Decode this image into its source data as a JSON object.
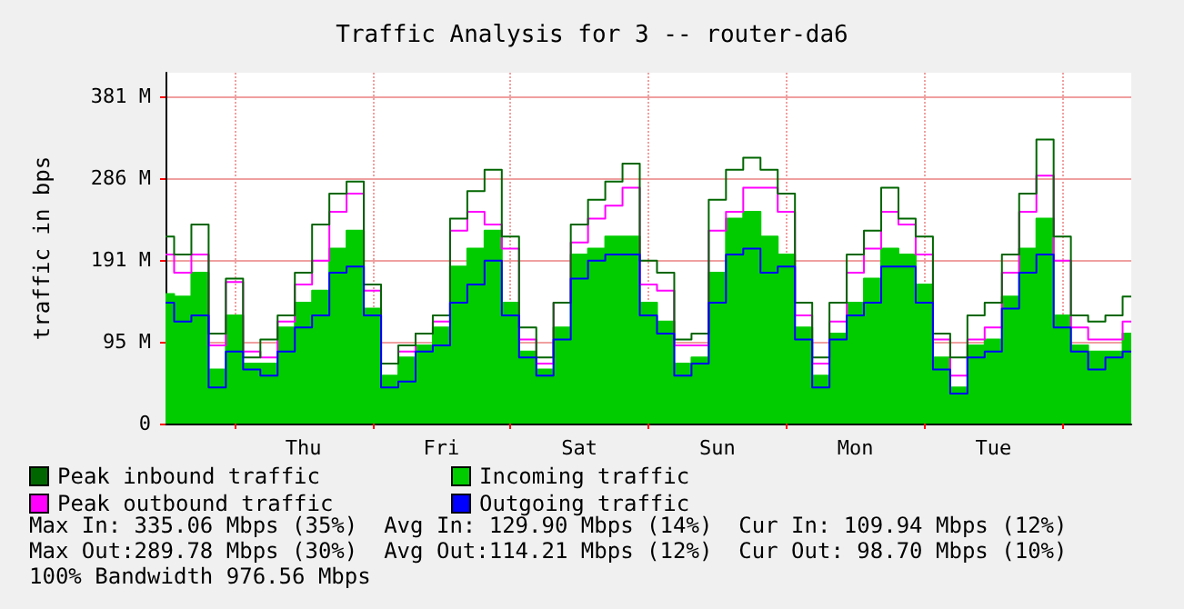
{
  "chart_data": {
    "type": "step",
    "title": "Traffic Analysis for 3 -- router-da6",
    "ylabel": "traffic in bps",
    "categories": [
      null,
      null,
      null,
      null,
      null,
      null,
      null,
      null,
      "Thu",
      null,
      null,
      null,
      null,
      null,
      null,
      null,
      "Fri",
      null,
      null,
      null,
      null,
      null,
      null,
      null,
      "Sat",
      null,
      null,
      null,
      null,
      null,
      null,
      null,
      "Sun",
      null,
      null,
      null,
      null,
      null,
      null,
      null,
      "Mon",
      null,
      null,
      null,
      null,
      null,
      null,
      null,
      "Tue",
      null,
      null,
      null,
      null,
      null,
      null,
      null,
      null
    ],
    "series": [
      {
        "name": "Incoming traffic",
        "type": "area",
        "color": "#00cc00",
        "values": [
          151,
          148,
          176,
          63,
          126,
          70,
          70,
          112,
          141,
          155,
          204,
          225,
          134,
          56,
          77,
          91,
          112,
          183,
          204,
          225,
          141,
          84,
          63,
          112,
          197,
          204,
          218,
          218,
          141,
          119,
          70,
          77,
          176,
          239,
          247,
          218,
          197,
          112,
          56,
          105,
          141,
          169,
          204,
          197,
          162,
          77,
          42,
          91,
          98,
          148,
          204,
          239,
          126,
          91,
          84,
          84,
          105
        ]
      },
      {
        "name": "Peak inbound traffic",
        "color": "#006600",
        "values": [
          218,
          197,
          232,
          105,
          169,
          77,
          98,
          126,
          176,
          232,
          268,
          282,
          162,
          70,
          91,
          105,
          126,
          239,
          271,
          296,
          218,
          112,
          77,
          141,
          232,
          261,
          282,
          303,
          190,
          176,
          98,
          105,
          261,
          296,
          310,
          296,
          268,
          141,
          77,
          141,
          197,
          225,
          275,
          239,
          218,
          105,
          77,
          126,
          141,
          197,
          268,
          331,
          218,
          126,
          119,
          126,
          148
        ]
      },
      {
        "name": "Peak outbound traffic",
        "color": "#ff00ff",
        "values": [
          197,
          176,
          197,
          91,
          165,
          84,
          77,
          119,
          162,
          190,
          247,
          268,
          155,
          70,
          84,
          105,
          119,
          225,
          247,
          232,
          204,
          98,
          70,
          141,
          211,
          239,
          254,
          275,
          162,
          155,
          91,
          91,
          225,
          247,
          275,
          275,
          247,
          126,
          70,
          119,
          176,
          204,
          247,
          232,
          197,
          98,
          56,
          98,
          112,
          176,
          247,
          289,
          190,
          112,
          98,
          98,
          119
        ]
      },
      {
        "name": "Outgoing traffic",
        "color": "#0000ff",
        "values": [
          141,
          119,
          126,
          42,
          84,
          63,
          56,
          84,
          112,
          126,
          176,
          183,
          126,
          42,
          49,
          84,
          91,
          141,
          162,
          190,
          126,
          77,
          56,
          98,
          169,
          190,
          197,
          197,
          126,
          105,
          56,
          70,
          141,
          197,
          204,
          176,
          183,
          98,
          42,
          98,
          126,
          141,
          183,
          183,
          141,
          63,
          35,
          77,
          84,
          134,
          176,
          197,
          112,
          84,
          63,
          77,
          84
        ]
      }
    ],
    "ylim": [
      0,
      409
    ],
    "yticks": [
      0,
      {
        "value": 95,
        "label": "95 M"
      },
      {
        "value": 191,
        "label": "191 M"
      },
      {
        "value": 286,
        "label": "286 M"
      },
      {
        "value": 381,
        "label": "381 M"
      }
    ],
    "grid": true,
    "legend": "bottom",
    "line_style": "solid",
    "marker": "none",
    "annotations": [
      "Max In: 335.06 Mbps (35%)  Avg In: 129.90 Mbps (14%)  Cur In: 109.94 Mbps (12%)",
      "Max Out:289.78 Mbps (30%)  Avg Out:114.21 Mbps (12%)  Cur Out: 98.70 Mbps (10%)",
      "100% Bandwidth 976.56 Mbps"
    ]
  }
}
